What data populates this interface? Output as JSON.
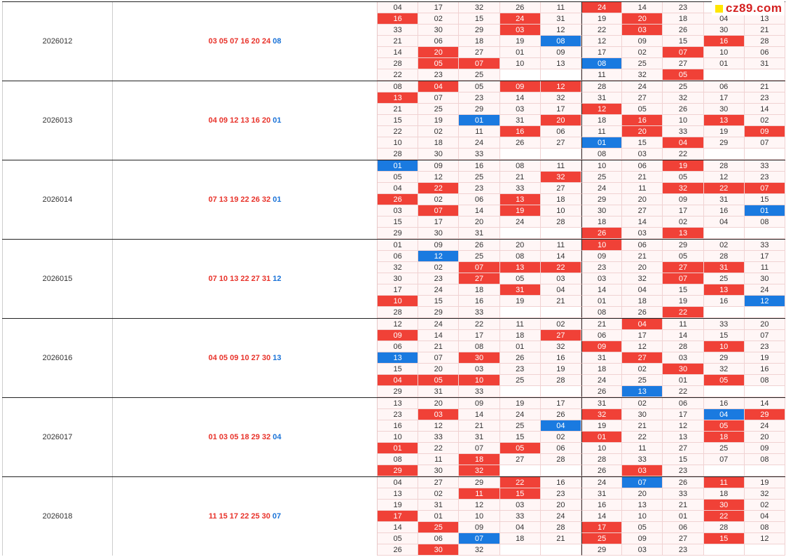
{
  "watermark": {
    "text": "cz89.com"
  },
  "colors": {
    "red_hit": "#f04137",
    "blue_hit": "#1a7ae0",
    "cell_bg": "#fff6f6"
  },
  "periods": [
    {
      "issue": "2026012",
      "reds": "03 05 07 16 20 24",
      "blue": "08",
      "grid": [
        [
          "04",
          "17",
          "32",
          "26",
          "11",
          "24r",
          "14",
          "23",
          "",
          ""
        ],
        [
          "16r",
          "02",
          "15",
          "24r",
          "31",
          "19",
          "20r",
          "18",
          "04",
          "13"
        ],
        [
          "33",
          "30",
          "29",
          "03r",
          "12",
          "22",
          "03r",
          "26",
          "30",
          "21"
        ],
        [
          "21",
          "06",
          "18",
          "19",
          "08b",
          "12",
          "09",
          "15",
          "16r",
          "28"
        ],
        [
          "14",
          "20r",
          "27",
          "01",
          "09",
          "17",
          "02",
          "07r",
          "10",
          "06"
        ],
        [
          "28",
          "05r",
          "07r",
          "10",
          "13",
          "08b",
          "25",
          "27",
          "01",
          "31"
        ],
        [
          "22",
          "23",
          "25",
          "",
          "",
          "11",
          "32",
          "05r",
          "",
          ""
        ]
      ]
    },
    {
      "issue": "2026013",
      "reds": "04 09 12 13 16 20",
      "blue": "01",
      "grid": [
        [
          "08",
          "04r",
          "05",
          "09r",
          "12r",
          "28",
          "24",
          "25",
          "06",
          "21"
        ],
        [
          "13r",
          "07",
          "23",
          "14",
          "32",
          "31",
          "27",
          "32",
          "17",
          "23"
        ],
        [
          "21",
          "25",
          "29",
          "03",
          "17",
          "12r",
          "05",
          "26",
          "30",
          "14"
        ],
        [
          "15",
          "19",
          "01b",
          "31",
          "20r",
          "18",
          "16r",
          "10",
          "13r",
          "02"
        ],
        [
          "22",
          "02",
          "11",
          "16r",
          "06",
          "11",
          "20r",
          "33",
          "19",
          "09r"
        ],
        [
          "10",
          "18",
          "24",
          "26",
          "27",
          "01b",
          "15",
          "04r",
          "29",
          "07"
        ],
        [
          "28",
          "30",
          "33",
          "",
          "",
          "08",
          "03",
          "22",
          "",
          ""
        ]
      ]
    },
    {
      "issue": "2026014",
      "reds": "07 13 19 22 26 32",
      "blue": "01",
      "grid": [
        [
          "01b",
          "09",
          "16",
          "08",
          "11",
          "10",
          "06",
          "19r",
          "28",
          "33"
        ],
        [
          "05",
          "12",
          "25",
          "21",
          "32r",
          "25",
          "21",
          "05",
          "12",
          "23"
        ],
        [
          "04",
          "22r",
          "23",
          "33",
          "27",
          "24",
          "11",
          "32r",
          "22r",
          "07r"
        ],
        [
          "26r",
          "02",
          "06",
          "13r",
          "18",
          "29",
          "20",
          "09",
          "31",
          "15"
        ],
        [
          "03",
          "07r",
          "14",
          "19r",
          "10",
          "30",
          "27",
          "17",
          "16",
          "01b"
        ],
        [
          "15",
          "17",
          "20",
          "24",
          "28",
          "18",
          "14",
          "02",
          "04",
          "08"
        ],
        [
          "29",
          "30",
          "31",
          "",
          "",
          "26r",
          "03",
          "13r",
          "",
          ""
        ]
      ]
    },
    {
      "issue": "2026015",
      "reds": "07 10 13 22 27 31",
      "blue": "12",
      "grid": [
        [
          "01",
          "09",
          "26",
          "20",
          "11",
          "10r",
          "06",
          "29",
          "02",
          "33"
        ],
        [
          "06",
          "12b",
          "25",
          "08",
          "14",
          "09",
          "21",
          "05",
          "28",
          "17"
        ],
        [
          "32",
          "02",
          "07r",
          "13r",
          "22r",
          "23",
          "20",
          "27r",
          "31r",
          "11"
        ],
        [
          "30",
          "23",
          "27r",
          "05",
          "03",
          "03",
          "32",
          "07r",
          "25",
          "30"
        ],
        [
          "17",
          "24",
          "18",
          "31r",
          "04",
          "14",
          "04",
          "15",
          "13r",
          "24"
        ],
        [
          "10r",
          "15",
          "16",
          "19",
          "21",
          "01",
          "18",
          "19",
          "16",
          "12b"
        ],
        [
          "28",
          "29",
          "33",
          "",
          "",
          "08",
          "26",
          "22r",
          "",
          ""
        ]
      ]
    },
    {
      "issue": "2026016",
      "reds": "04 05 09 10 27 30",
      "blue": "13",
      "grid": [
        [
          "12",
          "24",
          "22",
          "11",
          "02",
          "21",
          "04r",
          "11",
          "33",
          "20"
        ],
        [
          "09r",
          "14",
          "17",
          "18",
          "27r",
          "06",
          "17",
          "14",
          "15",
          "07"
        ],
        [
          "06",
          "21",
          "08",
          "01",
          "32",
          "09r",
          "12",
          "28",
          "10r",
          "23"
        ],
        [
          "13b",
          "07",
          "30r",
          "26",
          "16",
          "31",
          "27r",
          "03",
          "29",
          "19"
        ],
        [
          "15",
          "20",
          "03",
          "23",
          "19",
          "18",
          "02",
          "30r",
          "32",
          "16"
        ],
        [
          "04r",
          "05r",
          "10r",
          "25",
          "28",
          "24",
          "25",
          "01",
          "05r",
          "08"
        ],
        [
          "29",
          "31",
          "33",
          "",
          "",
          "26",
          "13b",
          "22",
          "",
          ""
        ]
      ]
    },
    {
      "issue": "2026017",
      "reds": "01 03 05 18 29 32",
      "blue": "04",
      "grid": [
        [
          "13",
          "20",
          "09",
          "19",
          "17",
          "31",
          "02",
          "06",
          "16",
          "14"
        ],
        [
          "23",
          "03r",
          "14",
          "24",
          "26",
          "32r",
          "30",
          "17",
          "04b",
          "29r"
        ],
        [
          "16",
          "12",
          "21",
          "25",
          "04b",
          "19",
          "21",
          "12",
          "05r",
          "24"
        ],
        [
          "10",
          "33",
          "31",
          "15",
          "02",
          "01r",
          "22",
          "13",
          "18r",
          "20"
        ],
        [
          "01r",
          "22",
          "07",
          "05r",
          "06",
          "10",
          "11",
          "27",
          "25",
          "09"
        ],
        [
          "08",
          "11",
          "18r",
          "27",
          "28",
          "28",
          "33",
          "15",
          "07",
          "08"
        ],
        [
          "29r",
          "30",
          "32r",
          "",
          "",
          "26",
          "03r",
          "23",
          "",
          ""
        ]
      ]
    },
    {
      "issue": "2026018",
      "reds": "11 15 17 22 25 30",
      "blue": "07",
      "grid": [
        [
          "04",
          "27",
          "29",
          "22r",
          "16",
          "24",
          "07b",
          "26",
          "11r",
          "19"
        ],
        [
          "13",
          "02",
          "11r",
          "15r",
          "23",
          "31",
          "20",
          "33",
          "18",
          "32"
        ],
        [
          "19",
          "31",
          "12",
          "03",
          "20",
          "16",
          "13",
          "21",
          "30r",
          "02"
        ],
        [
          "17r",
          "01",
          "10",
          "33",
          "24",
          "14",
          "10",
          "01",
          "22r",
          "04"
        ],
        [
          "14",
          "25r",
          "09",
          "04",
          "28",
          "17r",
          "05",
          "06",
          "28",
          "08"
        ],
        [
          "05",
          "06",
          "07b",
          "18",
          "21",
          "25r",
          "09",
          "27",
          "15r",
          "12"
        ],
        [
          "26",
          "30r",
          "32",
          "",
          "",
          "29",
          "03",
          "23",
          "",
          ""
        ]
      ]
    }
  ]
}
